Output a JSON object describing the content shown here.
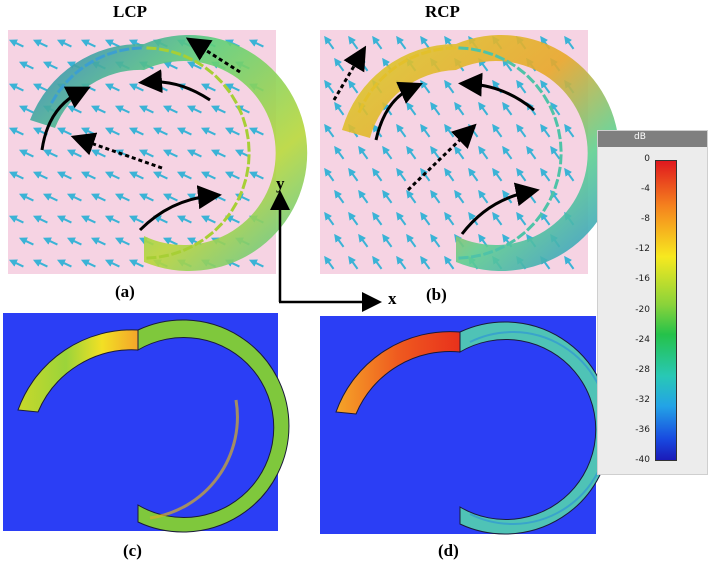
{
  "panels": {
    "a": {
      "title": "LCP",
      "label": "(a)"
    },
    "b": {
      "title": "RCP",
      "label": "(b)"
    },
    "c": {
      "label": "(c)"
    },
    "d": {
      "label": "(d)"
    }
  },
  "axes": {
    "x": "x",
    "y": "y"
  },
  "colorbar": {
    "unit": "dB",
    "ticks": [
      "0",
      "-4",
      "-8",
      "-12",
      "-16",
      "-20",
      "-24",
      "-28",
      "-32",
      "-36",
      "-40"
    ],
    "colors": [
      "#e0181e",
      "#f5821e",
      "#f7e91f",
      "#8ad33a",
      "#25c24a",
      "#28c8b6",
      "#23a3e6",
      "#1849e0",
      "#1a1ab8"
    ]
  },
  "colors": {
    "vector_bg": "#f6d3e3",
    "field_bg": "#2b3ef5",
    "small_arrow": "#3bb3d6"
  }
}
